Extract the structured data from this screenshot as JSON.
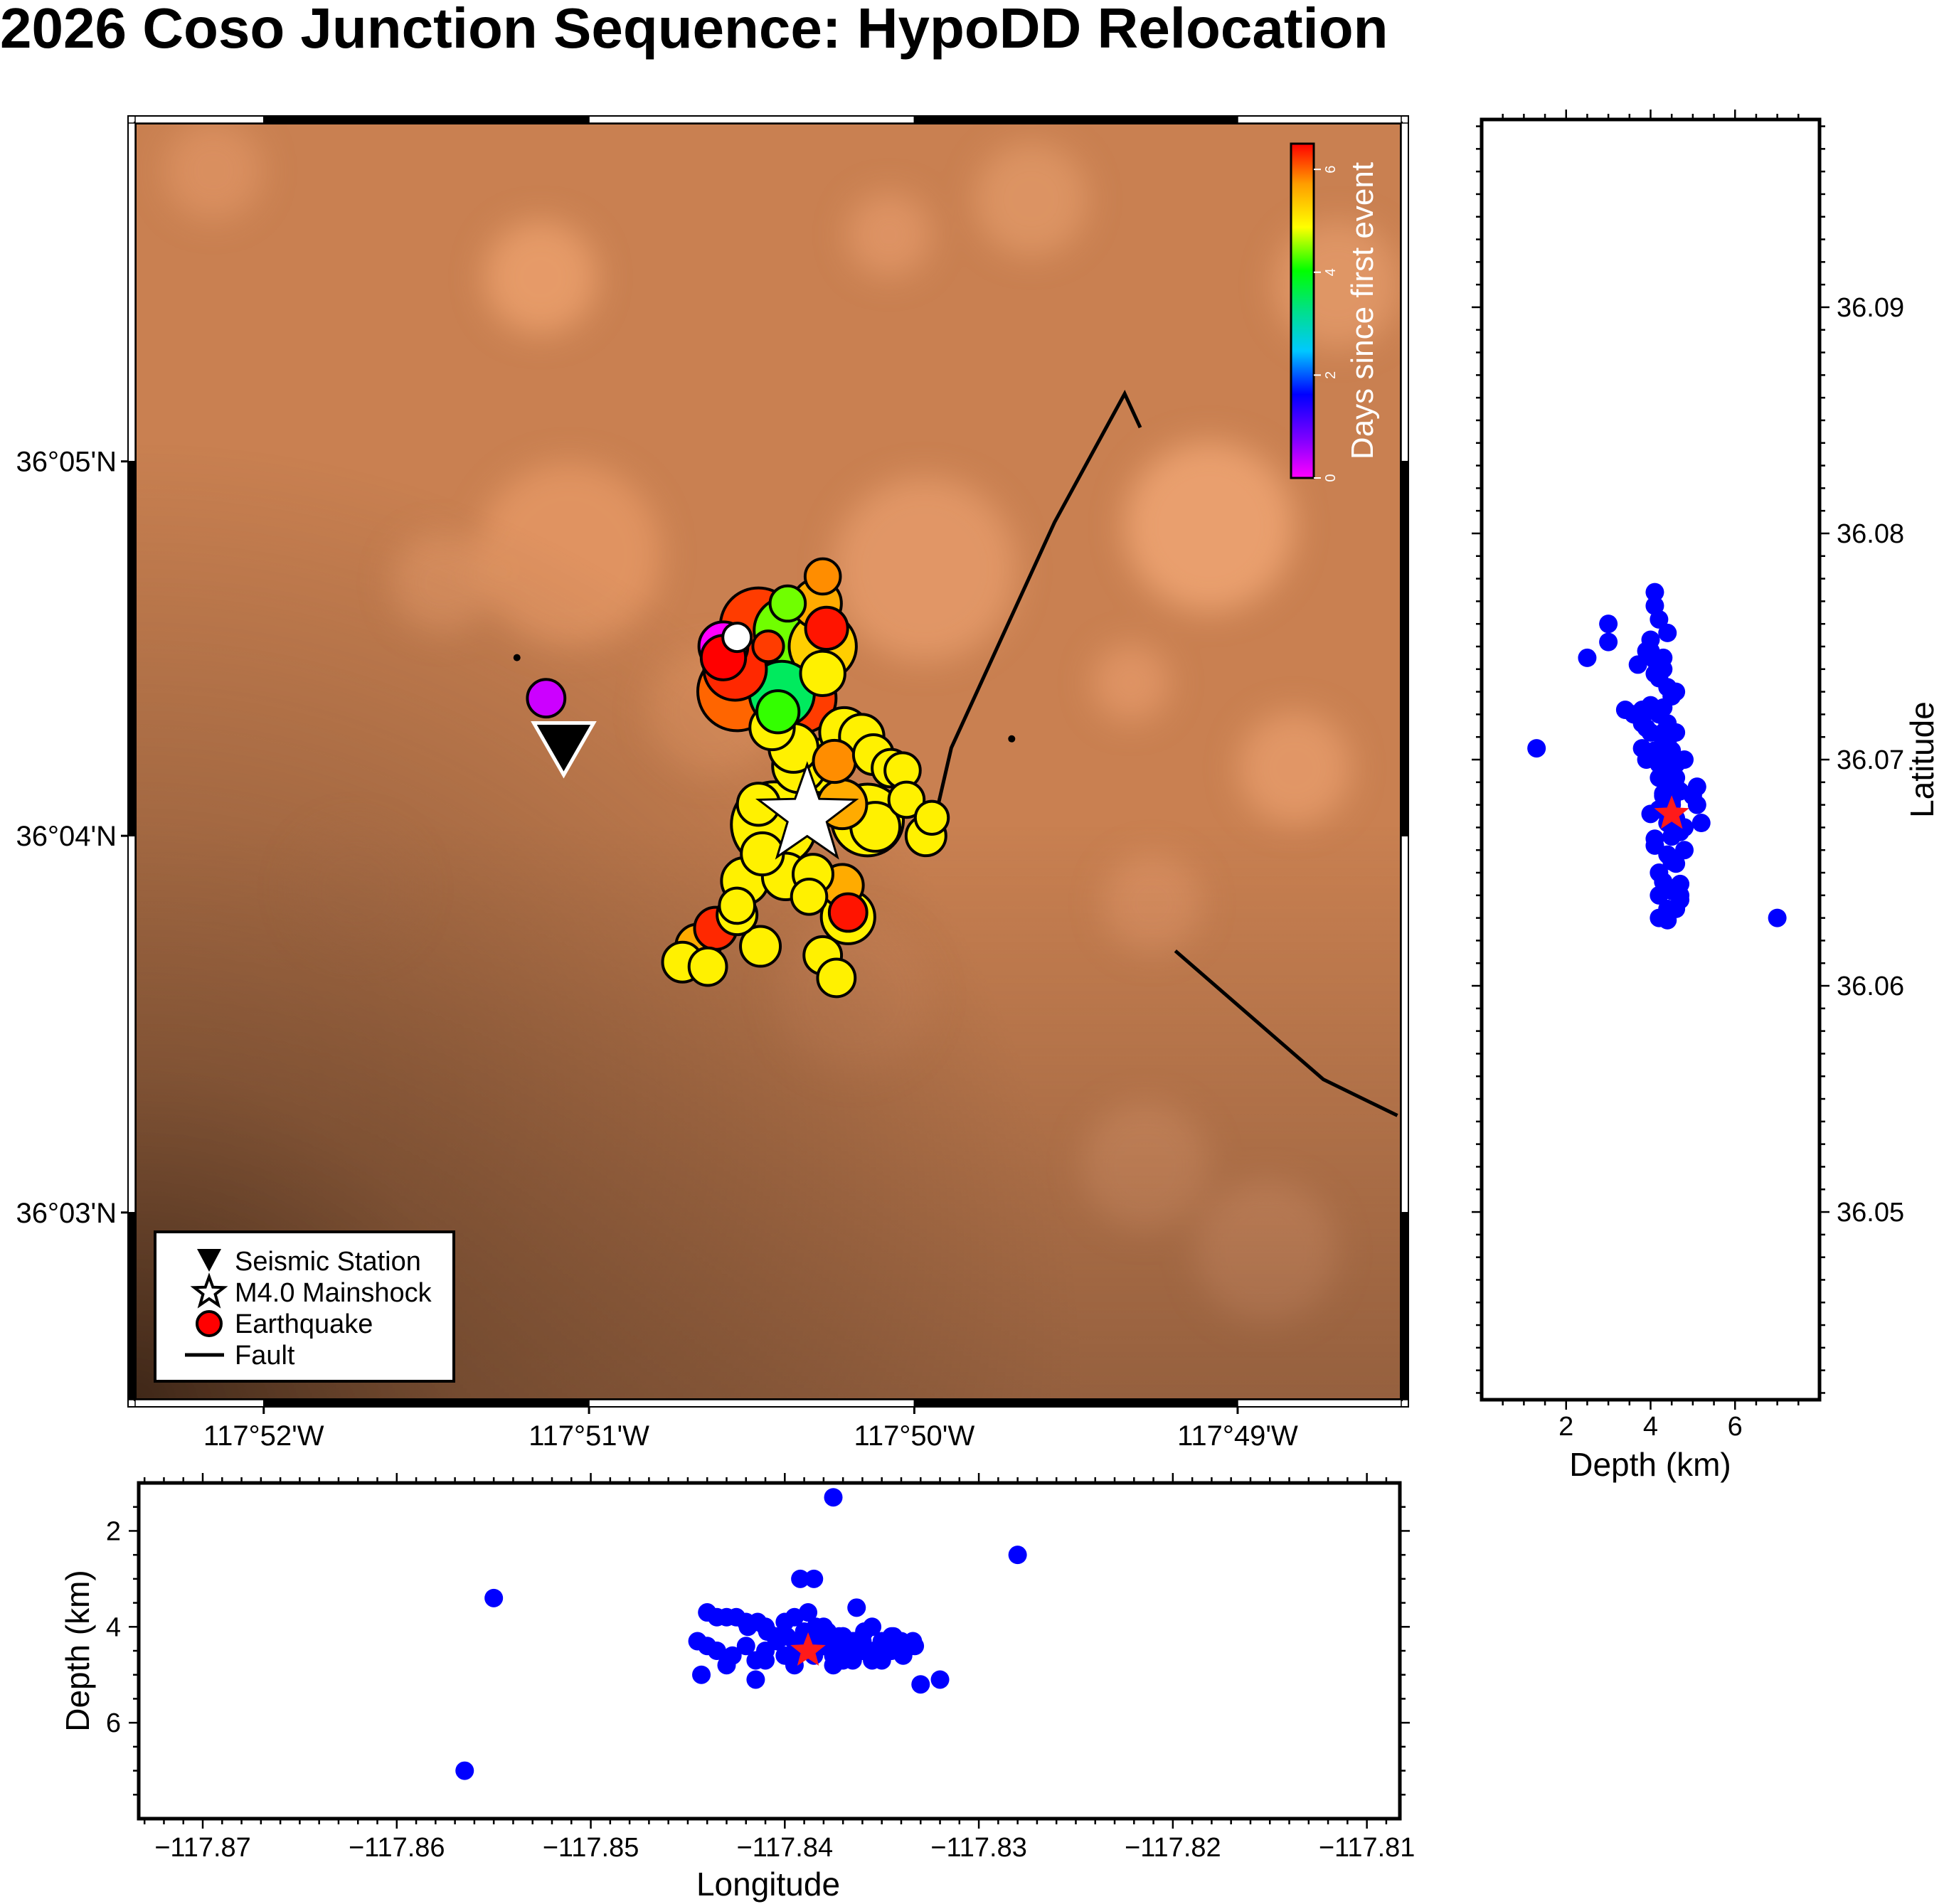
{
  "title": "2026 Coso Junction Sequence: HypoDD Relocation",
  "colors": {
    "terrain_light": "#f2a06f",
    "terrain_mid": "#c98051",
    "terrain_dark": "#4b3221",
    "projection": "#0000ff",
    "mainshock_projection": "#ff1a1a"
  },
  "map": {
    "lon_range": [
      -117.8733,
      -117.8083
    ],
    "lat_range": [
      36.0417,
      36.0983
    ],
    "x_ticks": [
      {
        "lon": -117.8667,
        "label": "117°52'W"
      },
      {
        "lon": -117.85,
        "label": "117°51'W"
      },
      {
        "lon": -117.8333,
        "label": "117°50'W"
      },
      {
        "lon": -117.8167,
        "label": "117°49'W"
      }
    ],
    "y_ticks": [
      {
        "lat": 36.05,
        "label": "36°03'N"
      },
      {
        "lat": 36.0667,
        "label": "36°04'N"
      },
      {
        "lat": 36.0833,
        "label": "36°05'N"
      }
    ],
    "colorbar": {
      "label": "Days since first event",
      "ticks": [
        "0",
        "2",
        "4",
        "6"
      ],
      "range": [
        0,
        6.5
      ]
    },
    "legend": [
      {
        "symbol": "triangle-icon",
        "label": "Seismic Station"
      },
      {
        "symbol": "star-icon",
        "label": "M4.0 Mainshock"
      },
      {
        "symbol": "circle-icon",
        "label": "Earthquake"
      },
      {
        "symbol": "line-icon",
        "label": "Fault"
      }
    ],
    "station": {
      "lon": -117.8513,
      "lat": 36.0706
    },
    "mainshock": {
      "lon": -117.8388,
      "lat": 36.0676
    },
    "faults": [
      [
        [
          -117.8217,
          36.0848
        ],
        [
          -117.8225,
          36.0863
        ],
        [
          -117.8261,
          36.0806
        ],
        [
          -117.8314,
          36.0706
        ],
        [
          -117.8322,
          36.0676
        ]
      ],
      [
        [
          -117.8199,
          36.0616
        ],
        [
          -117.8123,
          36.0559
        ],
        [
          -117.8085,
          36.0543
        ]
      ]
    ],
    "events": [
      {
        "lon": -117.8537,
        "lat": 36.0746,
        "mag": 0.3,
        "days": 2.0
      },
      {
        "lon": -117.8522,
        "lat": 36.0728,
        "mag": 0.9,
        "days": 0.3
      },
      {
        "lon": -117.8283,
        "lat": 36.071,
        "mag": 0.3,
        "days": 2.0
      },
      {
        "lon": -117.8413,
        "lat": 36.076,
        "mag": 2.6,
        "days": 6.2
      },
      {
        "lon": -117.8398,
        "lat": 36.0758,
        "mag": 2.2,
        "days": 4.4
      },
      {
        "lon": -117.8425,
        "lat": 36.0741,
        "mag": 2.0,
        "days": 6.3
      },
      {
        "lon": -117.8424,
        "lat": 36.0731,
        "mag": 2.7,
        "days": 6.0
      },
      {
        "lon": -117.8391,
        "lat": 36.0728,
        "mag": 2.3,
        "days": 6.2
      },
      {
        "lon": -117.8401,
        "lat": 36.073,
        "mag": 2.1,
        "days": 3.5
      },
      {
        "lon": -117.838,
        "lat": 36.0751,
        "mag": 2.2,
        "days": 5.3
      },
      {
        "lon": -117.8383,
        "lat": 36.077,
        "mag": 1.4,
        "days": 5.6
      },
      {
        "lon": -117.838,
        "lat": 36.0782,
        "mag": 0.8,
        "days": 5.8
      },
      {
        "lon": -117.8378,
        "lat": 36.0759,
        "mag": 1.1,
        "days": 6.4
      },
      {
        "lon": -117.8369,
        "lat": 36.0713,
        "mag": 1.4,
        "days": 5.0
      },
      {
        "lon": -117.836,
        "lat": 36.0711,
        "mag": 1.2,
        "days": 5.0
      },
      {
        "lon": -117.8354,
        "lat": 36.0703,
        "mag": 1.0,
        "days": 5.0
      },
      {
        "lon": -117.8345,
        "lat": 36.0697,
        "mag": 0.9,
        "days": 5.0
      },
      {
        "lon": -117.8339,
        "lat": 36.0696,
        "mag": 0.8,
        "days": 5.0
      },
      {
        "lon": -117.8337,
        "lat": 36.0683,
        "mag": 0.8,
        "days": 5.0
      },
      {
        "lon": -117.8327,
        "lat": 36.0667,
        "mag": 1.0,
        "days": 5.0
      },
      {
        "lon": -117.8353,
        "lat": 36.0671,
        "mag": 1.4,
        "days": 5.0
      },
      {
        "lon": -117.8381,
        "lat": 36.0698,
        "mag": 1.6,
        "days": 5.0
      },
      {
        "lon": -117.837,
        "lat": 36.0681,
        "mag": 1.4,
        "days": 5.6
      },
      {
        "lon": -117.8357,
        "lat": 36.0674,
        "mag": 2.4,
        "days": 5.0
      },
      {
        "lon": -117.8405,
        "lat": 36.0672,
        "mag": 3.0,
        "days": 5.0
      },
      {
        "lon": -117.8413,
        "lat": 36.0681,
        "mag": 1.1,
        "days": 5.0
      },
      {
        "lon": -117.8411,
        "lat": 36.0659,
        "mag": 1.1,
        "days": 5.0
      },
      {
        "lon": -117.8385,
        "lat": 36.065,
        "mag": 1.0,
        "days": 5.0
      },
      {
        "lon": -117.837,
        "lat": 36.0645,
        "mag": 1.1,
        "days": 5.6
      },
      {
        "lon": -117.8367,
        "lat": 36.0631,
        "mag": 1.6,
        "days": 5.0
      },
      {
        "lon": -117.8367,
        "lat": 36.0633,
        "mag": 0.9,
        "days": 6.4
      },
      {
        "lon": -117.8387,
        "lat": 36.064,
        "mag": 0.8,
        "days": 5.0
      },
      {
        "lon": -117.838,
        "lat": 36.0614,
        "mag": 0.9,
        "days": 5.0
      },
      {
        "lon": -117.8373,
        "lat": 36.0604,
        "mag": 0.9,
        "days": 5.0
      },
      {
        "lon": -117.8412,
        "lat": 36.0618,
        "mag": 1.0,
        "days": 5.0
      },
      {
        "lon": -117.8424,
        "lat": 36.0632,
        "mag": 1.0,
        "days": 5.0
      },
      {
        "lon": -117.8435,
        "lat": 36.0626,
        "mag": 1.1,
        "days": 6.3
      },
      {
        "lon": -117.8444,
        "lat": 36.0618,
        "mag": 1.2,
        "days": 5.6
      },
      {
        "lon": -117.8452,
        "lat": 36.0611,
        "mag": 1.0,
        "days": 5.0
      },
      {
        "lon": -117.8439,
        "lat": 36.0609,
        "mag": 0.9,
        "days": 5.0
      },
      {
        "lon": -117.8424,
        "lat": 36.0636,
        "mag": 0.8,
        "days": 5.0
      },
      {
        "lon": -117.842,
        "lat": 36.0647,
        "mag": 1.3,
        "days": 5.0
      },
      {
        "lon": -117.8399,
        "lat": 36.0649,
        "mag": 1.3,
        "days": 5.0
      },
      {
        "lon": -117.8324,
        "lat": 36.0675,
        "mag": 0.7,
        "days": 5.0
      },
      {
        "lon": -117.8392,
        "lat": 36.0698,
        "mag": 1.6,
        "days": 5.0
      },
      {
        "lon": -117.8395,
        "lat": 36.0706,
        "mag": 1.4,
        "days": 5.0
      },
      {
        "lon": -117.8374,
        "lat": 36.07,
        "mag": 1.1,
        "days": 5.8
      },
      {
        "lon": -117.838,
        "lat": 36.0739,
        "mag": 1.2,
        "days": 5.0
      },
      {
        "lon": -117.8403,
        "lat": 36.0722,
        "mag": 1.1,
        "days": 4.2
      },
      {
        "lon": -117.8406,
        "lat": 36.0715,
        "mag": 1.2,
        "days": 5.0
      },
      {
        "lon": -117.8431,
        "lat": 36.0746,
        "mag": 1.2,
        "days": 6.5
      },
      {
        "lon": -117.8408,
        "lat": 36.0751,
        "mag": 0.6,
        "days": 6.2
      },
      {
        "lon": -117.8398,
        "lat": 36.077,
        "mag": 0.8,
        "days": 4.4
      },
      {
        "lon": -117.8431,
        "lat": 36.0751,
        "mag": 1.4,
        "days": 0.0
      }
    ]
  },
  "depth_lat_plot": {
    "xlabel": "Depth (km)",
    "ylabel": "Latitude",
    "x_range": [
      0,
      8
    ],
    "y_range": [
      36.0417,
      36.0983
    ],
    "x_ticks": [
      "2",
      "4",
      "6"
    ],
    "y_ticks": [
      "36.05",
      "36.06",
      "36.07",
      "36.08",
      "36.09"
    ]
  },
  "lon_depth_plot": {
    "xlabel": "Longitude",
    "ylabel": "Depth (km)",
    "x_range": [
      -117.8733,
      -117.8083
    ],
    "y_range": [
      1,
      8
    ],
    "x_ticks": [
      "−117.87",
      "−117.86",
      "−117.85",
      "−117.84",
      "−117.83",
      "−117.82",
      "−117.81"
    ],
    "y_ticks": [
      "2",
      "4",
      "6"
    ]
  },
  "projection_events": [
    {
      "lon": -117.8419,
      "lat": 36.0753,
      "depth": 4.0
    },
    {
      "lon": -117.8414,
      "lat": 36.0748,
      "depth": 3.9
    },
    {
      "lon": -117.8409,
      "lat": 36.0744,
      "depth": 4.1
    },
    {
      "lon": -117.8404,
      "lat": 36.074,
      "depth": 4.3
    },
    {
      "lon": -117.8399,
      "lat": 36.0736,
      "depth": 4.2
    },
    {
      "lon": -117.8394,
      "lat": 36.0732,
      "depth": 4.4
    },
    {
      "lon": -117.8389,
      "lat": 36.0728,
      "depth": 4.5
    },
    {
      "lon": -117.8384,
      "lat": 36.0724,
      "depth": 4.0
    },
    {
      "lon": -117.8379,
      "lat": 36.072,
      "depth": 4.2
    },
    {
      "lon": -117.8374,
      "lat": 36.0716,
      "depth": 4.4
    },
    {
      "lon": -117.8369,
      "lat": 36.0712,
      "depth": 4.6
    },
    {
      "lon": -117.8364,
      "lat": 36.0708,
      "depth": 4.3
    },
    {
      "lon": -117.8359,
      "lat": 36.0704,
      "depth": 4.1
    },
    {
      "lon": -117.8354,
      "lat": 36.07,
      "depth": 4.5
    },
    {
      "lon": -117.8349,
      "lat": 36.0696,
      "depth": 4.4
    },
    {
      "lon": -117.8344,
      "lat": 36.0692,
      "depth": 4.2
    },
    {
      "lon": -117.8339,
      "lat": 36.0688,
      "depth": 4.6
    },
    {
      "lon": -117.8334,
      "lat": 36.0684,
      "depth": 4.3
    },
    {
      "lon": -117.842,
      "lat": 36.069,
      "depth": 4.4
    },
    {
      "lon": -117.8415,
      "lat": 36.0686,
      "depth": 4.7
    },
    {
      "lon": -117.841,
      "lat": 36.0682,
      "depth": 4.5
    },
    {
      "lon": -117.8405,
      "lat": 36.0678,
      "depth": 4.2
    },
    {
      "lon": -117.84,
      "lat": 36.0674,
      "depth": 4.6
    },
    {
      "lon": -117.8395,
      "lat": 36.067,
      "depth": 4.8
    },
    {
      "lon": -117.839,
      "lat": 36.0666,
      "depth": 4.5
    },
    {
      "lon": -117.8385,
      "lat": 36.0662,
      "depth": 4.1
    },
    {
      "lon": -117.838,
      "lat": 36.0658,
      "depth": 4.4
    },
    {
      "lon": -117.8375,
      "lat": 36.0654,
      "depth": 4.6
    },
    {
      "lon": -117.837,
      "lat": 36.065,
      "depth": 4.2
    },
    {
      "lon": -117.8365,
      "lat": 36.0646,
      "depth": 4.3
    },
    {
      "lon": -117.836,
      "lat": 36.0642,
      "depth": 4.5
    },
    {
      "lon": -117.8355,
      "lat": 36.0638,
      "depth": 4.7
    },
    {
      "lon": -117.835,
      "lat": 36.0634,
      "depth": 4.4
    },
    {
      "lon": -117.8345,
      "lat": 36.063,
      "depth": 4.2
    },
    {
      "lon": -117.8395,
      "lat": 36.0745,
      "depth": 4.3
    },
    {
      "lon": -117.839,
      "lat": 36.0738,
      "depth": 4.1
    },
    {
      "lon": -117.8385,
      "lat": 36.073,
      "depth": 4.6
    },
    {
      "lon": -117.838,
      "lat": 36.0712,
      "depth": 4.0
    },
    {
      "lon": -117.8375,
      "lat": 36.0705,
      "depth": 4.4
    },
    {
      "lon": -117.837,
      "lat": 36.0698,
      "depth": 4.2
    },
    {
      "lon": -117.8365,
      "lat": 36.0692,
      "depth": 4.6
    },
    {
      "lon": -117.836,
      "lat": 36.0685,
      "depth": 4.3
    },
    {
      "lon": -117.844,
      "lat": 36.072,
      "depth": 3.7
    },
    {
      "lon": -117.8435,
      "lat": 36.0722,
      "depth": 3.8
    },
    {
      "lon": -117.843,
      "lat": 36.0718,
      "depth": 3.8
    },
    {
      "lon": -117.8425,
      "lat": 36.0716,
      "depth": 3.8
    },
    {
      "lon": -117.842,
      "lat": 36.0714,
      "depth": 3.9
    },
    {
      "lon": -117.8445,
      "lat": 36.0712,
      "depth": 4.3
    },
    {
      "lon": -117.844,
      "lat": 36.0708,
      "depth": 4.4
    },
    {
      "lon": -117.8435,
      "lat": 36.0704,
      "depth": 4.5
    },
    {
      "lon": -117.843,
      "lat": 36.07,
      "depth": 4.8
    },
    {
      "lon": -117.8427,
      "lat": 36.0698,
      "depth": 4.6
    },
    {
      "lon": -117.84,
      "lat": 36.07,
      "depth": 3.9
    },
    {
      "lon": -117.8395,
      "lat": 36.0705,
      "depth": 3.8
    },
    {
      "lon": -117.8363,
      "lat": 36.072,
      "depth": 3.6
    },
    {
      "lon": -117.835,
      "lat": 36.0705,
      "depth": 4.3
    },
    {
      "lon": -117.834,
      "lat": 36.071,
      "depth": 4.3
    },
    {
      "lon": -117.8335,
      "lat": 36.07,
      "depth": 4.4
    },
    {
      "lon": -117.8392,
      "lat": 36.076,
      "depth": 3.0
    },
    {
      "lon": -117.8385,
      "lat": 36.0752,
      "depth": 3.0
    },
    {
      "lon": -117.8388,
      "lat": 36.0742,
      "depth": 3.7
    },
    {
      "lon": -117.841,
      "lat": 36.0748,
      "depth": 4.0
    },
    {
      "lon": -117.8378,
      "lat": 36.0768,
      "depth": 4.1
    },
    {
      "lon": -117.8372,
      "lat": 36.0762,
      "depth": 4.2
    },
    {
      "lon": -117.8368,
      "lat": 36.0756,
      "depth": 4.4
    },
    {
      "lon": -117.8385,
      "lat": 36.0672,
      "depth": 4.4
    },
    {
      "lon": -117.838,
      "lat": 36.0665,
      "depth": 4.1
    },
    {
      "lon": -117.8375,
      "lat": 36.066,
      "depth": 4.8
    },
    {
      "lon": -117.837,
      "lat": 36.0655,
      "depth": 4.5
    },
    {
      "lon": -117.84,
      "lat": 36.064,
      "depth": 4.2
    },
    {
      "lon": -117.8394,
      "lat": 36.0634,
      "depth": 4.6
    },
    {
      "lon": -117.839,
      "lat": 36.0629,
      "depth": 4.4
    },
    {
      "lon": -117.8387,
      "lat": 36.0774,
      "depth": 4.1
    },
    {
      "lon": -117.838,
      "lat": 36.0723,
      "depth": 4.3
    },
    {
      "lon": -117.8355,
      "lat": 36.0676,
      "depth": 4.0
    },
    {
      "lon": -117.8345,
      "lat": 36.068,
      "depth": 4.5
    },
    {
      "lon": -117.8333,
      "lat": 36.0678,
      "depth": 4.4
    },
    {
      "lon": -117.855,
      "lat": 36.0722,
      "depth": 3.4
    },
    {
      "lon": -117.8565,
      "lat": 36.063,
      "depth": 7.0
    },
    {
      "lon": -117.8375,
      "lat": 36.0705,
      "depth": 1.3
    },
    {
      "lon": -117.828,
      "lat": 36.0745,
      "depth": 2.5
    },
    {
      "lon": -117.8443,
      "lat": 36.0684,
      "depth": 5.0
    },
    {
      "lon": -117.8415,
      "lat": 36.0688,
      "depth": 5.1
    },
    {
      "lon": -117.833,
      "lat": 36.0672,
      "depth": 5.2
    },
    {
      "lon": -117.832,
      "lat": 36.068,
      "depth": 5.1
    },
    {
      "lon": -117.841,
      "lat": 36.067,
      "depth": 4.7
    },
    {
      "lon": -117.837,
      "lat": 36.0645,
      "depth": 4.7
    },
    {
      "lon": -117.8365,
      "lat": 36.064,
      "depth": 4.7
    },
    {
      "lon": -117.835,
      "lat": 36.0668,
      "depth": 4.7
    }
  ],
  "projection_mainshock": {
    "lon": -117.8388,
    "lat": 36.0676,
    "depth": 4.5
  }
}
